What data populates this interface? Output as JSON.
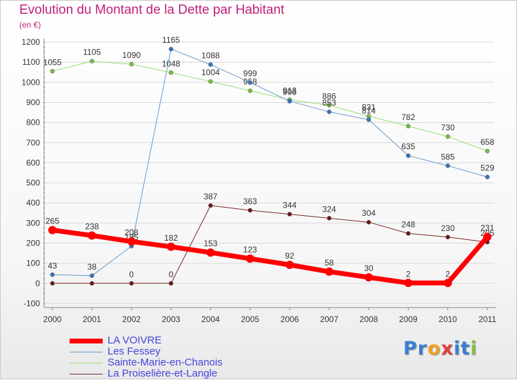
{
  "title": "Evolution du Montant de la Dette par Habitant",
  "unit": "(en €)",
  "logo": {
    "text": "Proxiti",
    "letters": [
      {
        "ch": "P",
        "color": "#3a7fd0"
      },
      {
        "ch": "r",
        "color": "#3a7fd0"
      },
      {
        "ch": "o",
        "color": "#f0a020"
      },
      {
        "ch": "x",
        "color": "#e04040"
      },
      {
        "ch": "i",
        "color": "#3a7fd0"
      },
      {
        "ch": "t",
        "color": "#3a7fd0"
      },
      {
        "ch": "i",
        "color": "#80c040"
      }
    ]
  },
  "chart_data": {
    "type": "line",
    "title": "Evolution du Montant de la Dette par Habitant",
    "ylabel": "(en €)",
    "xlabel": "",
    "x": [
      "2000",
      "2001",
      "2002",
      "2003",
      "2004",
      "2005",
      "2006",
      "2007",
      "2008",
      "2009",
      "2010",
      "2011"
    ],
    "ylim": [
      -100,
      1200
    ],
    "yticks": [
      -100,
      0,
      100,
      200,
      300,
      400,
      500,
      600,
      700,
      800,
      900,
      1000,
      1100,
      1200
    ],
    "grid": "horizontal",
    "legend_position": "bottom-left",
    "series": [
      {
        "name": "La Proiselière-et-Langle",
        "color": "#7a2a2a",
        "point_color": "#6a1818",
        "line_width": 1,
        "values": [
          0,
          0,
          0,
          0,
          387,
          363,
          344,
          324,
          304,
          248,
          230,
          205
        ],
        "labels": [
          "",
          "",
          "0",
          "0",
          "387",
          "363",
          "344",
          "324",
          "304",
          "248",
          "230",
          "205"
        ]
      },
      {
        "name": "Sainte-Marie-en-Chanois",
        "color": "#99dd77",
        "point_color": "#77c040",
        "line_width": 1,
        "values": [
          1055,
          1105,
          1090,
          1048,
          1004,
          958,
          913,
          886,
          831,
          782,
          730,
          658
        ],
        "labels": [
          "1055",
          "1105",
          "1090",
          "1048",
          "1004",
          "958",
          "913",
          "886",
          "831",
          "782",
          "730",
          "658"
        ]
      },
      {
        "name": "Les Fessey",
        "color": "#6699cc",
        "point_color": "#3377bb",
        "line_width": 1,
        "values": [
          43,
          38,
          185,
          1165,
          1088,
          999,
          906,
          853,
          814,
          635,
          585,
          529
        ],
        "labels": [
          "43",
          "38",
          "185",
          "1165",
          "1088",
          "999",
          "906",
          "853",
          "814",
          "635",
          "585",
          "529"
        ]
      },
      {
        "name": "LA VOIVRE",
        "color": "#ff0000",
        "point_color": "#ff0000",
        "line_width": 7,
        "values": [
          265,
          238,
          208,
          182,
          153,
          123,
          92,
          58,
          30,
          2,
          2,
          231
        ],
        "labels": [
          "265",
          "238",
          "208",
          "182",
          "153",
          "123",
          "92",
          "58",
          "30",
          "2",
          "2",
          "231"
        ]
      }
    ]
  },
  "legend": [
    {
      "label": "LA VOIVRE",
      "color": "#ff0000",
      "thickness": 7
    },
    {
      "label": "Les Fessey",
      "color": "#6699cc",
      "thickness": 1
    },
    {
      "label": "Sainte-Marie-en-Chanois",
      "color": "#99dd77",
      "thickness": 1
    },
    {
      "label": "La Proiselière-et-Langle",
      "color": "#7a2a2a",
      "thickness": 1
    }
  ]
}
